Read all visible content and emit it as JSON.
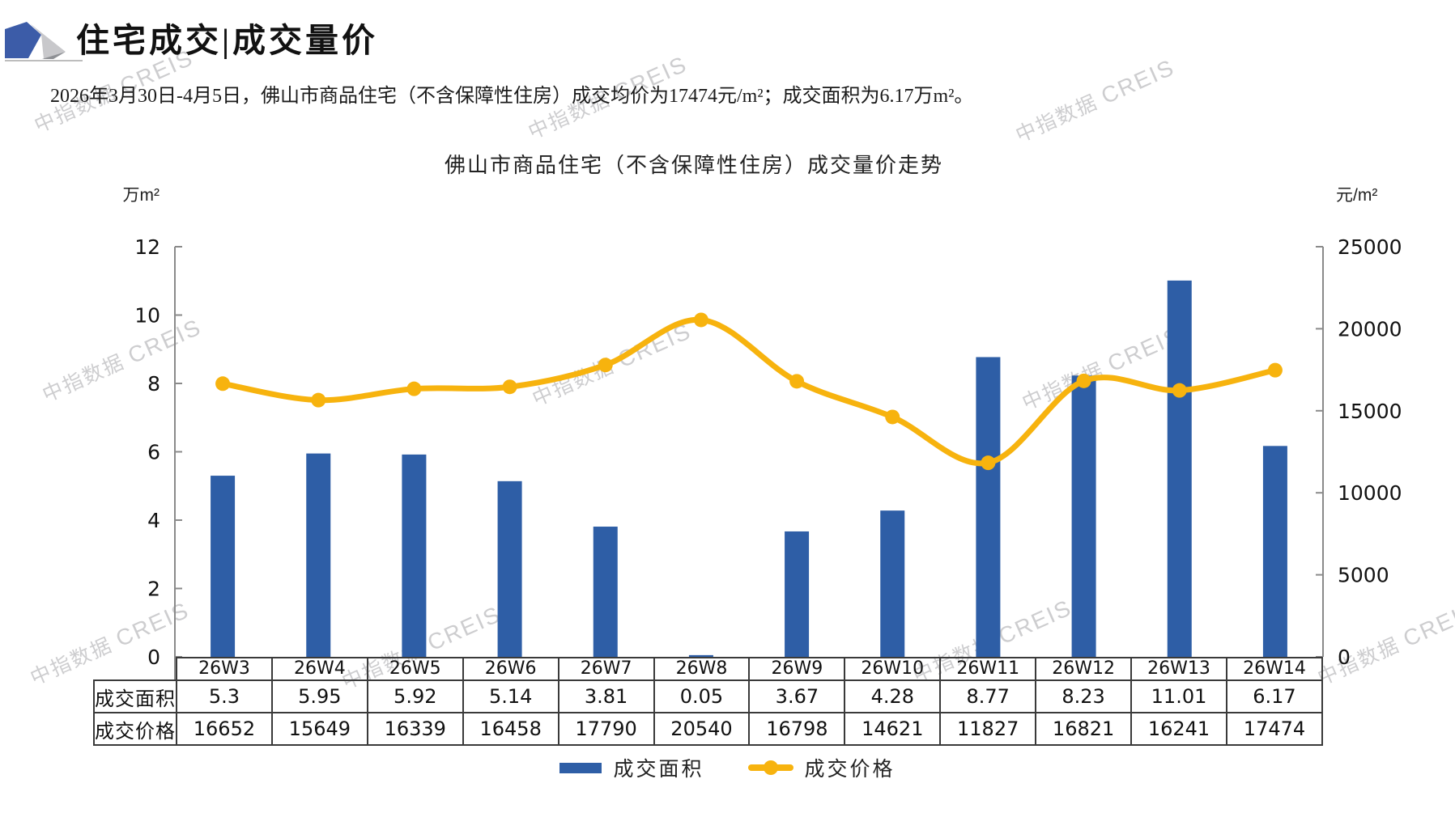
{
  "header": {
    "title": "住宅成交|成交量价"
  },
  "subtitle": "2026年3月30日-4月5日，佛山市商品住宅（不含保障性住房）成交均价为17474元/m²；成交面积为6.17万m²。",
  "watermark": {
    "cn": "中指数据",
    "en": "CREIS"
  },
  "chart_data": {
    "type": "bar+line",
    "title": "佛山市商品住宅（不含保障性住房）成交量价走势",
    "categories": [
      "26W3",
      "26W4",
      "26W5",
      "26W6",
      "26W7",
      "26W8",
      "26W9",
      "26W10",
      "26W11",
      "26W12",
      "26W13",
      "26W14"
    ],
    "series": [
      {
        "name": "成交面积",
        "type": "bar",
        "axis": "left",
        "unit": "万m²",
        "color": "#2E5EA6",
        "values": [
          5.3,
          5.95,
          5.92,
          5.14,
          3.81,
          0.05,
          3.67,
          4.28,
          8.77,
          8.23,
          11.01,
          6.17
        ]
      },
      {
        "name": "成交价格",
        "type": "line",
        "axis": "right",
        "unit": "元/m²",
        "color": "#F7B30E",
        "smooth": true,
        "values": [
          16652,
          15649,
          16339,
          16458,
          17790,
          20540,
          16798,
          14621,
          11827,
          16821,
          16241,
          17474
        ]
      }
    ],
    "left_axis": {
      "label": "万m²",
      "min": 0,
      "max": 12,
      "step": 2,
      "ticks": [
        "0",
        "2",
        "4",
        "6",
        "8",
        "10",
        "12"
      ]
    },
    "right_axis": {
      "label": "元/m²",
      "min": 0,
      "max": 25000,
      "step": 5000,
      "ticks": [
        "0",
        "5000",
        "10000",
        "15000",
        "20000",
        "25000"
      ]
    },
    "grid": false,
    "legend_position": "bottom"
  },
  "table": {
    "row_labels": [
      "成交面积",
      "成交价格"
    ]
  },
  "colors": {
    "axis_line": "#8a8a8a",
    "table_border": "#3a3a3a",
    "logo_blue": "#3C5CA8",
    "logo_gray_light": "#C8C8CB",
    "logo_gray_dark": "#8E9094"
  }
}
